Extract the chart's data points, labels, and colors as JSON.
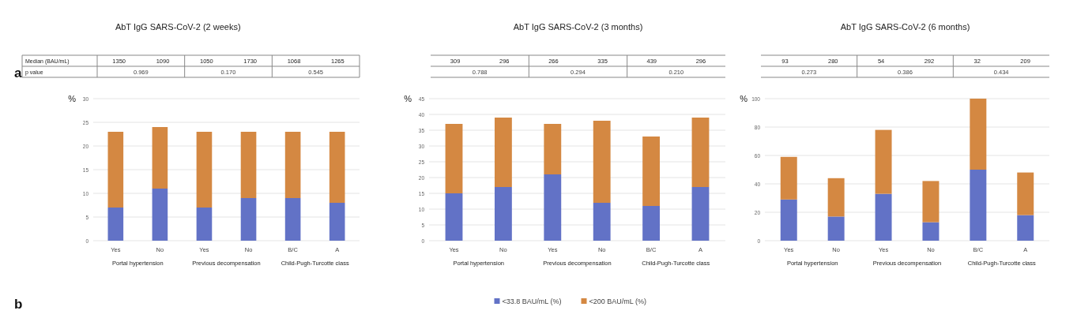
{
  "chart_data": [
    {
      "type": "bar",
      "stacked": true,
      "title": "AbT IgG SARS-CoV-2 (2 weeks)",
      "ylabel": "%",
      "categories": [
        "Yes",
        "No",
        "Yes",
        "No",
        "B/C",
        "A"
      ],
      "series": [
        {
          "color": "#6272c6",
          "values": [
            7,
            11,
            7,
            9,
            9,
            8
          ]
        },
        {
          "color": "#d48842",
          "values": [
            16,
            13,
            16,
            14,
            14,
            15
          ]
        }
      ],
      "ylim": [
        0,
        30
      ],
      "yticks": [
        0,
        5,
        10,
        15,
        20,
        25,
        30
      ],
      "grid": "y",
      "annotations": [
        "a",
        "b",
        "Median (BAU/mL)",
        "1350",
        "1090",
        "1050",
        "1730",
        "1068",
        "1265",
        "p value",
        "0.969",
        "0.170",
        "0.545",
        "Portal hypertension",
        "Previous decompensation",
        "Child-Pugh-Turcotte class"
      ]
    },
    {
      "type": "bar",
      "stacked": true,
      "title": "AbT IgG SARS-CoV-2 (3 months)",
      "ylabel": "%",
      "categories": [
        "Yes",
        "No",
        "Yes",
        "No",
        "B/C",
        "A"
      ],
      "series": [
        {
          "name": "<33.8 BAU/mL (%)",
          "color": "#6272c6",
          "values": [
            15,
            17,
            21,
            12,
            11,
            17
          ]
        },
        {
          "name": "<200 BAU/mL (%)",
          "color": "#d48842",
          "values": [
            22,
            22,
            16,
            26,
            22,
            22
          ]
        }
      ],
      "ylim": [
        0,
        45
      ],
      "yticks": [
        0,
        5,
        10,
        15,
        20,
        25,
        30,
        35,
        40,
        45
      ],
      "grid": "y",
      "legend": "bottom",
      "annotations": [
        "309",
        "296",
        "266",
        "335",
        "439",
        "296",
        "0.788",
        "0.294",
        "0.210",
        "Portal hypertension",
        "Previous decompensation",
        "Child-Pugh-Turcotte class"
      ]
    },
    {
      "type": "bar",
      "stacked": true,
      "title": "AbT IgG SARS-CoV-2 (6 months)",
      "ylabel": "%",
      "categories": [
        "Yes",
        "No",
        "Yes",
        "No",
        "B/C",
        "A"
      ],
      "series": [
        {
          "color": "#6272c6",
          "values": [
            29,
            17,
            33,
            13,
            50,
            18
          ]
        },
        {
          "color": "#d48842",
          "values": [
            30,
            27,
            45,
            29,
            50,
            30
          ]
        }
      ],
      "ylim": [
        0,
        100
      ],
      "yticks": [
        0,
        20,
        40,
        60,
        80,
        100
      ],
      "grid": "y",
      "annotations": [
        "93",
        "280",
        "54",
        "292",
        "32",
        "209",
        "0.273",
        "0.386",
        "0.434",
        "Portal hypertension",
        "Previous decompensation",
        "Child-Pugh-Turcotte class"
      ]
    }
  ]
}
